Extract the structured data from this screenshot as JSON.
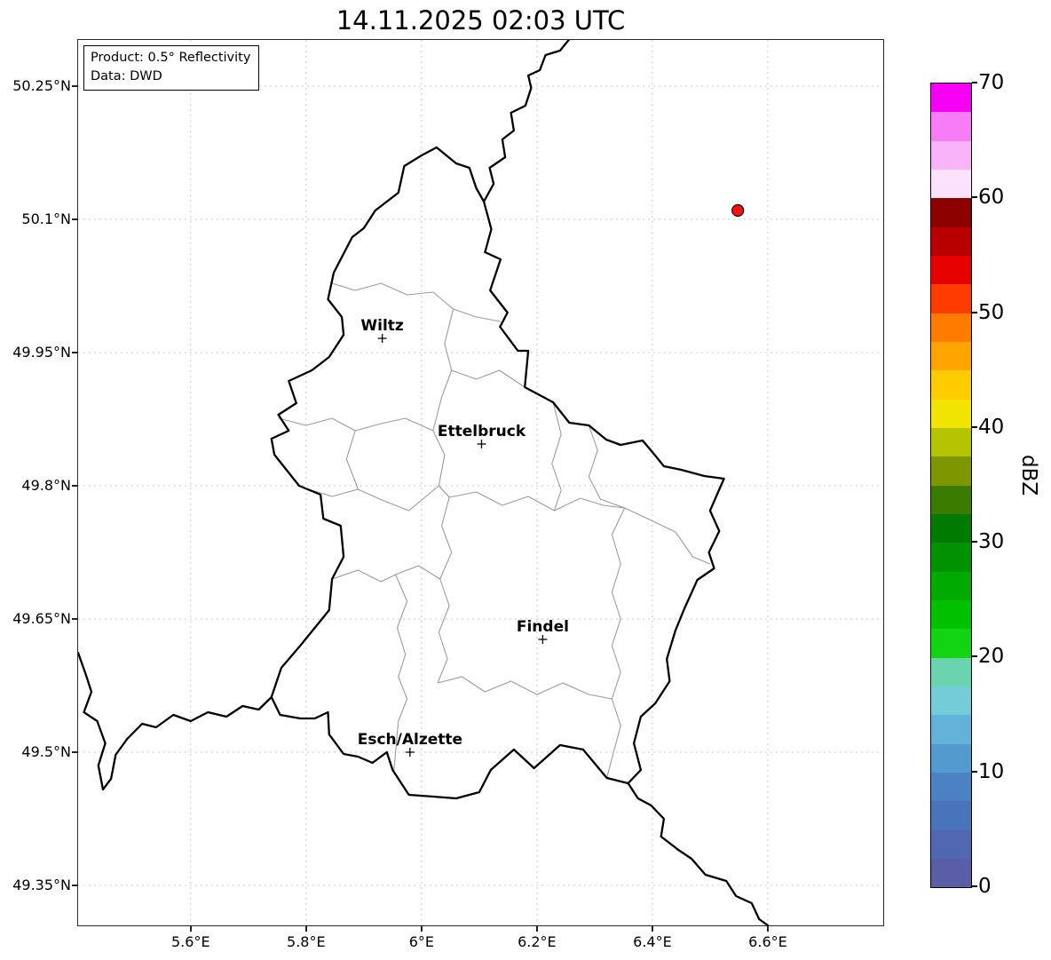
{
  "title": "14.11.2025 02:03 UTC",
  "info_box": {
    "line1": "Product: 0.5° Reflectivity",
    "line2": "Data: DWD"
  },
  "axes": {
    "x_ticks": [
      {
        "lon": 5.6,
        "label": "5.6°E"
      },
      {
        "lon": 5.8,
        "label": "5.8°E"
      },
      {
        "lon": 6.0,
        "label": "6°E"
      },
      {
        "lon": 6.2,
        "label": "6.2°E"
      },
      {
        "lon": 6.4,
        "label": "6.4°E"
      },
      {
        "lon": 6.6,
        "label": "6.6°E"
      }
    ],
    "y_ticks": [
      {
        "lat": 50.25,
        "label": "50.25°N"
      },
      {
        "lat": 50.1,
        "label": "50.1°N"
      },
      {
        "lat": 49.95,
        "label": "49.95°N"
      },
      {
        "lat": 49.8,
        "label": "49.8°N"
      },
      {
        "lat": 49.65,
        "label": "49.65°N"
      },
      {
        "lat": 49.5,
        "label": "49.5°N"
      },
      {
        "lat": 49.35,
        "label": "49.35°N"
      }
    ]
  },
  "cities": [
    {
      "name": "Wiltz",
      "lon": 5.932,
      "lat": 49.966
    },
    {
      "name": "Ettelbruck",
      "lon": 6.104,
      "lat": 49.847
    },
    {
      "name": "Findel",
      "lon": 6.21,
      "lat": 49.627
    },
    {
      "name": "Esch/Alzette",
      "lon": 5.98,
      "lat": 49.5
    }
  ],
  "radar_marker": {
    "lon": 6.548,
    "lat": 50.11,
    "color": "#ff0f0f"
  },
  "colorbar": {
    "label": "dBZ",
    "min": 0,
    "max": 70,
    "ticks": [
      0,
      10,
      20,
      30,
      40,
      50,
      60,
      70
    ],
    "colors_bottom_to_top": [
      "#5a5ea6",
      "#5168b0",
      "#4973ba",
      "#4a82c4",
      "#539ace",
      "#63b2da",
      "#74ccd8",
      "#6ad4ae",
      "#12d412",
      "#00c000",
      "#00aa00",
      "#009200",
      "#007a00",
      "#3a7c00",
      "#7e9600",
      "#b4c400",
      "#f0e400",
      "#ffcc00",
      "#ffa400",
      "#ff7c00",
      "#ff3c00",
      "#e60000",
      "#b80000",
      "#8c0000",
      "#fce2fc",
      "#f9b4f9",
      "#f77df7",
      "#f500f5"
    ]
  },
  "map": {
    "extent": {
      "lon_min": 5.405,
      "lon_max": 6.8,
      "lat_min": 49.305,
      "lat_max": 50.302
    },
    "country_border": [
      [
        6.026,
        50.181
      ],
      [
        6.06,
        50.163
      ],
      [
        6.083,
        50.158
      ],
      [
        6.095,
        50.135
      ],
      [
        6.108,
        50.12
      ],
      [
        6.121,
        50.089
      ],
      [
        6.11,
        50.063
      ],
      [
        6.137,
        50.055
      ],
      [
        6.119,
        50.02
      ],
      [
        6.149,
        49.995
      ],
      [
        6.136,
        49.979
      ],
      [
        6.167,
        49.952
      ],
      [
        6.185,
        49.952
      ],
      [
        6.179,
        49.911
      ],
      [
        6.228,
        49.894
      ],
      [
        6.256,
        49.871
      ],
      [
        6.29,
        49.868
      ],
      [
        6.32,
        49.852
      ],
      [
        6.345,
        49.846
      ],
      [
        6.383,
        49.851
      ],
      [
        6.4,
        49.838
      ],
      [
        6.42,
        49.822
      ],
      [
        6.45,
        49.818
      ],
      [
        6.49,
        49.811
      ],
      [
        6.524,
        49.808
      ],
      [
        6.5,
        49.772
      ],
      [
        6.516,
        49.749
      ],
      [
        6.498,
        49.725
      ],
      [
        6.507,
        49.707
      ],
      [
        6.478,
        49.694
      ],
      [
        6.455,
        49.661
      ],
      [
        6.44,
        49.637
      ],
      [
        6.425,
        49.605
      ],
      [
        6.43,
        49.58
      ],
      [
        6.405,
        49.555
      ],
      [
        6.38,
        49.54
      ],
      [
        6.368,
        49.51
      ],
      [
        6.38,
        49.48
      ],
      [
        6.358,
        49.465
      ],
      [
        6.321,
        49.471
      ],
      [
        6.28,
        49.503
      ],
      [
        6.24,
        49.508
      ],
      [
        6.195,
        49.482
      ],
      [
        6.16,
        49.503
      ],
      [
        6.12,
        49.48
      ],
      [
        6.1,
        49.455
      ],
      [
        6.06,
        49.448
      ],
      [
        6.02,
        49.45
      ],
      [
        5.978,
        49.452
      ],
      [
        5.95,
        49.48
      ],
      [
        5.94,
        49.5
      ],
      [
        5.915,
        49.488
      ],
      [
        5.89,
        49.495
      ],
      [
        5.865,
        49.498
      ],
      [
        5.84,
        49.52
      ],
      [
        5.838,
        49.545
      ],
      [
        5.815,
        49.538
      ],
      [
        5.79,
        49.538
      ],
      [
        5.755,
        49.542
      ],
      [
        5.74,
        49.562
      ],
      [
        5.757,
        49.595
      ],
      [
        5.79,
        49.62
      ],
      [
        5.815,
        49.64
      ],
      [
        5.84,
        49.66
      ],
      [
        5.845,
        49.695
      ],
      [
        5.865,
        49.72
      ],
      [
        5.86,
        49.755
      ],
      [
        5.83,
        49.763
      ],
      [
        5.825,
        49.79
      ],
      [
        5.788,
        49.8
      ],
      [
        5.745,
        49.835
      ],
      [
        5.74,
        49.853
      ],
      [
        5.77,
        49.862
      ],
      [
        5.752,
        49.88
      ],
      [
        5.783,
        49.893
      ],
      [
        5.77,
        49.918
      ],
      [
        5.81,
        49.93
      ],
      [
        5.84,
        49.945
      ],
      [
        5.865,
        49.97
      ],
      [
        5.862,
        49.99
      ],
      [
        5.838,
        50.01
      ],
      [
        5.848,
        50.04
      ],
      [
        5.88,
        50.08
      ],
      [
        5.9,
        50.09
      ],
      [
        5.92,
        50.11
      ],
      [
        5.96,
        50.13
      ],
      [
        5.97,
        50.16
      ],
      [
        6.0,
        50.172
      ],
      [
        6.026,
        50.181
      ]
    ],
    "neighbor_borders": [
      [
        [
          6.108,
          50.12
        ],
        [
          6.125,
          50.14
        ],
        [
          6.118,
          50.158
        ],
        [
          6.145,
          50.17
        ],
        [
          6.14,
          50.19
        ],
        [
          6.16,
          50.2
        ],
        [
          6.155,
          50.22
        ],
        [
          6.18,
          50.228
        ],
        [
          6.19,
          50.248
        ],
        [
          6.185,
          50.262
        ],
        [
          6.205,
          50.268
        ],
        [
          6.215,
          50.285
        ],
        [
          6.24,
          50.29
        ],
        [
          6.255,
          50.302
        ]
      ],
      [
        [
          5.74,
          49.562
        ],
        [
          5.718,
          49.548
        ],
        [
          5.69,
          49.552
        ],
        [
          5.662,
          49.54
        ],
        [
          5.63,
          49.545
        ],
        [
          5.6,
          49.535
        ],
        [
          5.57,
          49.542
        ],
        [
          5.54,
          49.528
        ],
        [
          5.516,
          49.532
        ],
        [
          5.49,
          49.515
        ],
        [
          5.47,
          49.497
        ],
        [
          5.462,
          49.47
        ],
        [
          5.448,
          49.458
        ],
        [
          5.44,
          49.485
        ],
        [
          5.452,
          49.51
        ],
        [
          5.438,
          49.535
        ],
        [
          5.415,
          49.545
        ],
        [
          5.428,
          49.568
        ],
        [
          5.418,
          49.588
        ],
        [
          5.405,
          49.612
        ]
      ],
      [
        [
          6.358,
          49.465
        ],
        [
          6.375,
          49.448
        ],
        [
          6.398,
          49.44
        ],
        [
          6.42,
          49.425
        ],
        [
          6.415,
          49.405
        ],
        [
          6.445,
          49.39
        ],
        [
          6.468,
          49.38
        ],
        [
          6.492,
          49.362
        ],
        [
          6.528,
          49.355
        ],
        [
          6.545,
          49.338
        ],
        [
          6.572,
          49.33
        ],
        [
          6.585,
          49.312
        ],
        [
          6.6,
          49.305
        ]
      ]
    ],
    "canton_borders": [
      [
        [
          5.845,
          50.028
        ],
        [
          5.885,
          50.02
        ],
        [
          5.93,
          50.028
        ],
        [
          5.975,
          50.015
        ],
        [
          6.02,
          50.018
        ],
        [
          6.055,
          49.999
        ],
        [
          6.095,
          49.99
        ],
        [
          6.137,
          49.985
        ]
      ],
      [
        [
          5.752,
          49.876
        ],
        [
          5.8,
          49.868
        ],
        [
          5.845,
          49.876
        ],
        [
          5.885,
          49.862
        ],
        [
          5.93,
          49.87
        ],
        [
          5.972,
          49.876
        ],
        [
          6.02,
          49.862
        ]
      ],
      [
        [
          6.055,
          49.999
        ],
        [
          6.04,
          49.96
        ],
        [
          6.052,
          49.93
        ],
        [
          6.035,
          49.9
        ],
        [
          6.02,
          49.862
        ],
        [
          6.04,
          49.835
        ],
        [
          6.03,
          49.8
        ],
        [
          6.048,
          49.787
        ]
      ],
      [
        [
          5.8,
          49.797
        ],
        [
          5.845,
          49.788
        ],
        [
          5.89,
          49.796
        ],
        [
          5.935,
          49.783
        ],
        [
          5.978,
          49.772
        ],
        [
          6.03,
          49.8
        ],
        [
          6.048,
          49.787
        ],
        [
          6.095,
          49.793
        ],
        [
          6.14,
          49.778
        ],
        [
          6.185,
          49.788
        ],
        [
          6.23,
          49.772
        ],
        [
          6.275,
          49.786
        ],
        [
          6.315,
          49.778
        ],
        [
          6.352,
          49.775
        ]
      ],
      [
        [
          6.29,
          49.868
        ],
        [
          6.305,
          49.84
        ],
        [
          6.29,
          49.81
        ],
        [
          6.31,
          49.785
        ],
        [
          6.352,
          49.775
        ],
        [
          6.33,
          49.745
        ],
        [
          6.345,
          49.712
        ],
        [
          6.33,
          49.68
        ],
        [
          6.345,
          49.65
        ],
        [
          6.33,
          49.62
        ],
        [
          6.345,
          49.59
        ],
        [
          6.33,
          49.56
        ],
        [
          6.345,
          49.53
        ],
        [
          6.321,
          49.471
        ]
      ],
      [
        [
          6.352,
          49.775
        ],
        [
          6.395,
          49.762
        ],
        [
          6.44,
          49.748
        ],
        [
          6.47,
          49.72
        ],
        [
          6.5,
          49.712
        ]
      ],
      [
        [
          6.048,
          49.787
        ],
        [
          6.035,
          49.755
        ],
        [
          6.052,
          49.725
        ],
        [
          6.032,
          49.695
        ],
        [
          6.048,
          49.665
        ],
        [
          6.03,
          49.635
        ],
        [
          6.045,
          49.605
        ],
        [
          6.028,
          49.578
        ]
      ],
      [
        [
          6.028,
          49.578
        ],
        [
          6.07,
          49.585
        ],
        [
          6.11,
          49.568
        ],
        [
          6.155,
          49.58
        ],
        [
          6.2,
          49.565
        ],
        [
          6.245,
          49.578
        ],
        [
          6.29,
          49.565
        ],
        [
          6.33,
          49.56
        ]
      ],
      [
        [
          5.955,
          49.7
        ],
        [
          5.975,
          49.67
        ],
        [
          5.958,
          49.64
        ],
        [
          5.972,
          49.61
        ],
        [
          5.96,
          49.585
        ],
        [
          5.975,
          49.56
        ],
        [
          5.96,
          49.535
        ],
        [
          5.952,
          49.478
        ]
      ],
      [
        [
          5.845,
          49.695
        ],
        [
          5.89,
          49.705
        ],
        [
          5.93,
          49.692
        ],
        [
          5.955,
          49.7
        ],
        [
          5.995,
          49.71
        ],
        [
          6.032,
          49.695
        ]
      ],
      [
        [
          6.052,
          49.93
        ],
        [
          6.095,
          49.92
        ],
        [
          6.135,
          49.93
        ],
        [
          6.179,
          49.911
        ]
      ],
      [
        [
          6.228,
          49.894
        ],
        [
          6.242,
          49.858
        ],
        [
          6.226,
          49.825
        ],
        [
          6.242,
          49.795
        ],
        [
          6.23,
          49.772
        ]
      ],
      [
        [
          5.885,
          49.862
        ],
        [
          5.87,
          49.83
        ],
        [
          5.888,
          49.8
        ],
        [
          5.89,
          49.796
        ]
      ]
    ]
  }
}
